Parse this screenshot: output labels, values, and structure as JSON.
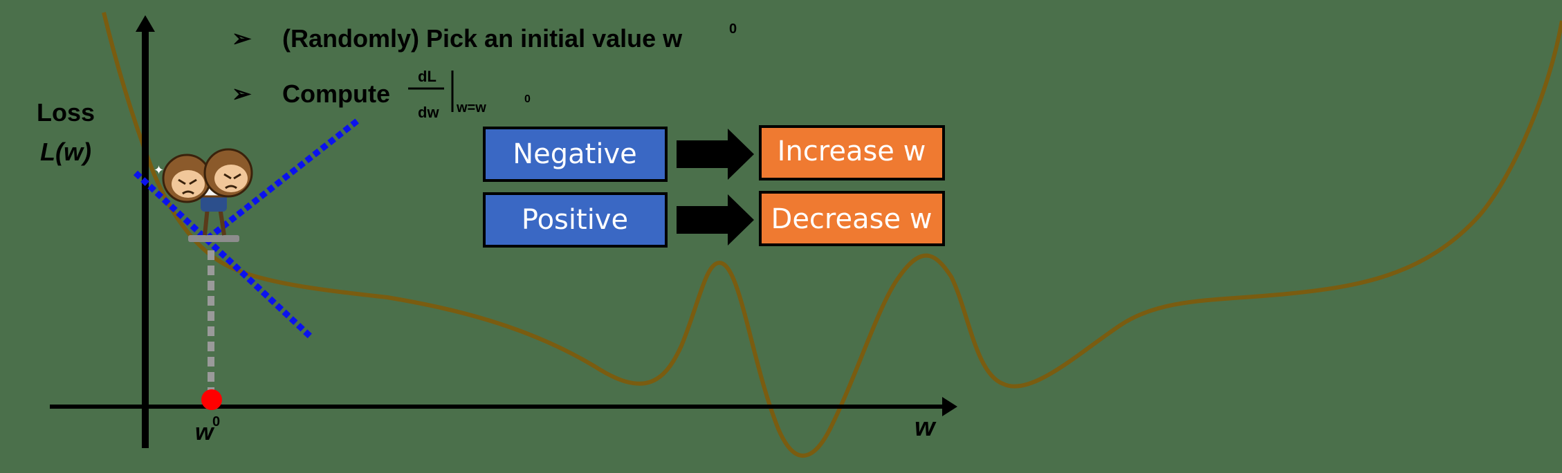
{
  "bullets": [
    {
      "arrow": "➢",
      "text": "(Randomly) Pick an initial value w",
      "sup": "0"
    },
    {
      "arrow": "➢",
      "text": "Compute",
      "frac_num": "dL",
      "frac_den": "dw",
      "eval_sub": "w=w",
      "eval_sup": "0"
    }
  ],
  "y_axis_label": {
    "line1": "Loss",
    "line2": "L(w)"
  },
  "x_axis_label": "w",
  "initial_point_label": {
    "base": "w",
    "sup": "0"
  },
  "rules": [
    {
      "condition": "Negative",
      "action": "Increase w"
    },
    {
      "condition": "Positive",
      "action": "Decrease w"
    }
  ],
  "colors": {
    "background": "#4b704b",
    "curve": "#7a5c10",
    "tangent": "#0b12ee",
    "condition_box": "#3a68c4",
    "action_box": "#ef7a31",
    "point": "#ff0000"
  }
}
